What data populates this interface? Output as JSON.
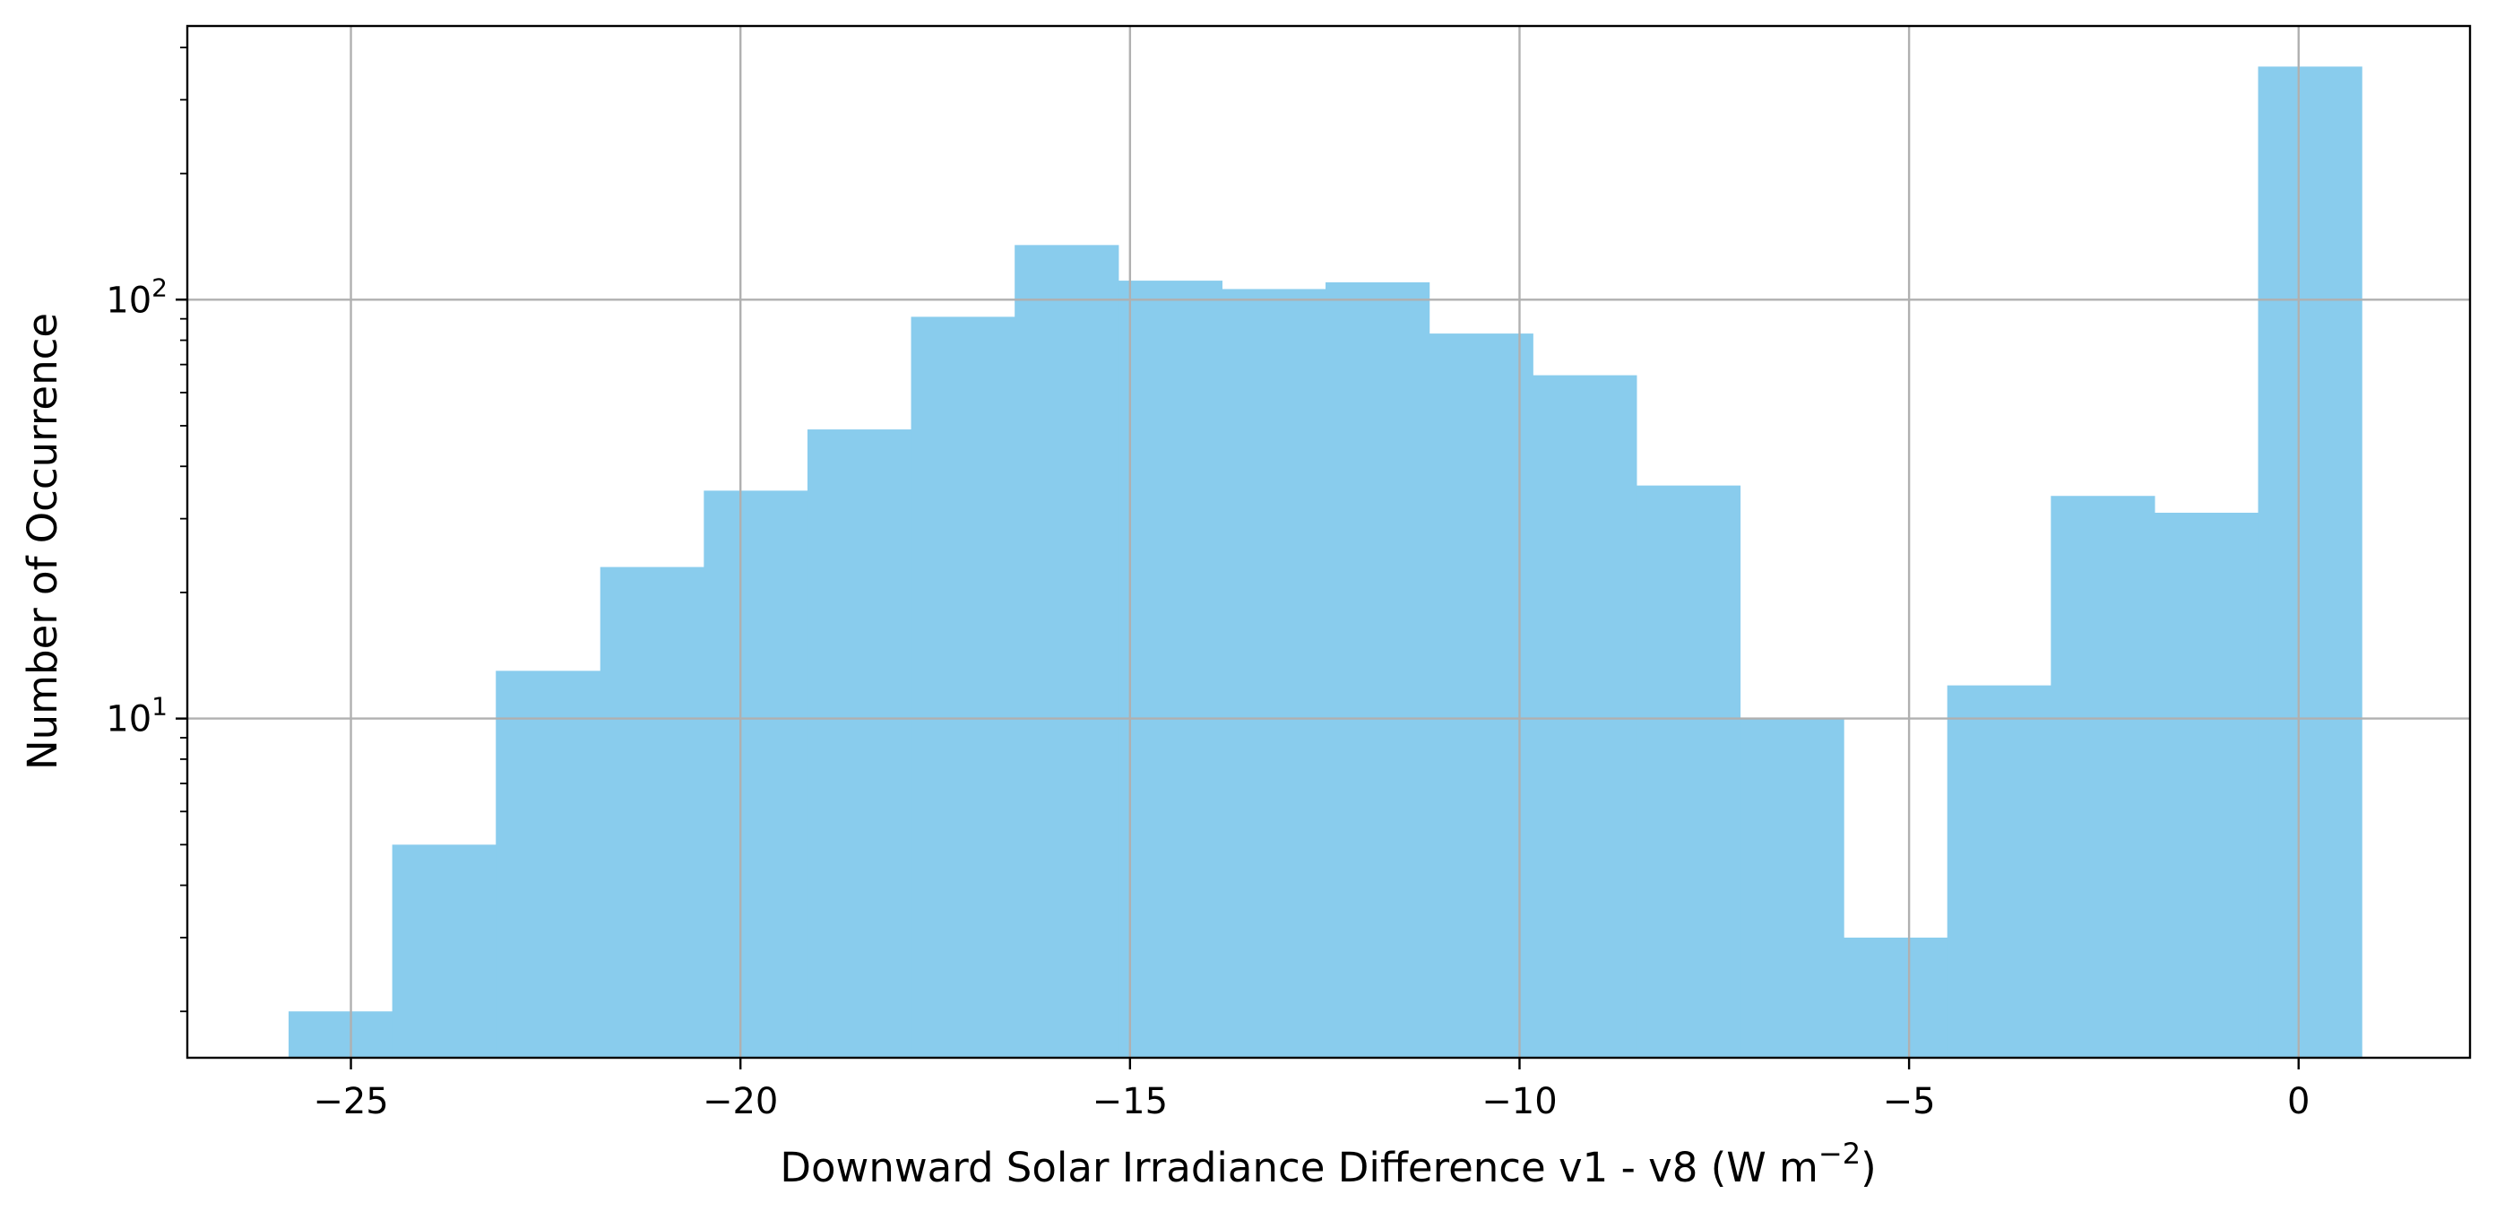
{
  "chart_data": {
    "type": "bar",
    "subtype": "histogram",
    "xlabel": "Downward Solar Irradiance Difference v1 - v8 (W m",
    "xlabel_superscript": "−2",
    "xlabel_suffix": ")",
    "ylabel": "Number of Occurrence",
    "yscale": "log",
    "grid": true,
    "xlim": [
      -27.1,
      2.2
    ],
    "ylim": [
      1.55,
      450
    ],
    "x_ticks": [
      -25,
      -20,
      -15,
      -10,
      -5,
      0
    ],
    "x_tick_labels": [
      "−25",
      "−20",
      "−15",
      "−10",
      "−5",
      "0"
    ],
    "y_ticks": [
      {
        "value": 10,
        "base": "10",
        "exponent": "1"
      },
      {
        "value": 100,
        "base": "10",
        "exponent": "2"
      }
    ],
    "bar_color": "#89CCED",
    "bin_edges": [
      -25.8,
      -24.47,
      -23.14,
      -21.8,
      -20.47,
      -19.14,
      -17.81,
      -16.48,
      -15.15,
      -13.82,
      -12.49,
      -11.16,
      -9.83,
      -8.5,
      -7.17,
      -5.84,
      -4.51,
      -3.18,
      -1.85,
      -0.52,
      0.81
    ],
    "counts": [
      2,
      5,
      13,
      23,
      35,
      49,
      91,
      135,
      111,
      106,
      110,
      83,
      66,
      36,
      10,
      3,
      12,
      34,
      31,
      360
    ]
  }
}
